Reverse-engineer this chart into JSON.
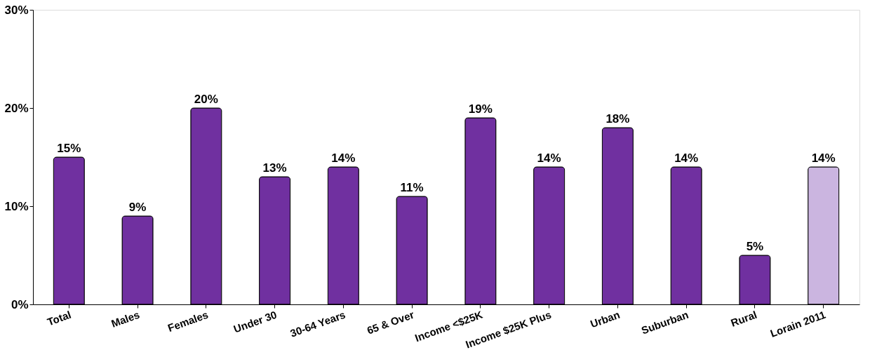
{
  "chart_data": {
    "type": "bar",
    "categories": [
      "Total",
      "Males",
      "Females",
      "Under 30",
      "30-64 Years",
      "65 & Over",
      "Income <$25K",
      "Income $25K Plus",
      "Urban",
      "Suburban",
      "Rural",
      "Lorain 2011"
    ],
    "values": [
      15,
      9,
      20,
      13,
      14,
      11,
      19,
      14,
      18,
      14,
      5,
      14
    ],
    "colors": [
      "#7030a0",
      "#7030a0",
      "#7030a0",
      "#7030a0",
      "#7030a0",
      "#7030a0",
      "#7030a0",
      "#7030a0",
      "#7030a0",
      "#7030a0",
      "#7030a0",
      "#cbb5e0"
    ],
    "value_labels": [
      "15%",
      "9%",
      "20%",
      "13%",
      "14%",
      "11%",
      "19%",
      "14%",
      "18%",
      "14%",
      "5%",
      "14%"
    ],
    "ylim": [
      0,
      30
    ],
    "yticks": [
      {
        "value": 0,
        "label": "0%"
      },
      {
        "value": 10,
        "label": "10%"
      },
      {
        "value": 20,
        "label": "20%"
      },
      {
        "value": 30,
        "label": "30%"
      }
    ],
    "grid": false
  }
}
